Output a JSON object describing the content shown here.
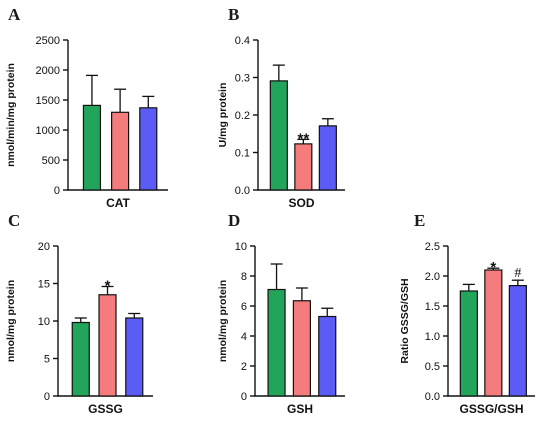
{
  "colors": {
    "group1": "#22a55a",
    "group2": "#f47c7c",
    "group3": "#5b5bf5"
  },
  "chart_data": [
    {
      "type": "bar",
      "panel": "A",
      "xlabel": "CAT",
      "ylabel": "nmol/min/mg protein",
      "ylim": [
        0,
        2500
      ],
      "yticks": [
        "0",
        "500",
        "1000",
        "1500",
        "2000",
        "2500"
      ],
      "values": [
        1410,
        1295,
        1370
      ],
      "errors": [
        500,
        385,
        190
      ],
      "annotations": [
        "",
        "",
        ""
      ]
    },
    {
      "type": "bar",
      "panel": "B",
      "xlabel": "SOD",
      "ylabel": "U/mg protein",
      "ylim": [
        0,
        0.4
      ],
      "yticks": [
        "0.0",
        "0.1",
        "0.2",
        "0.3",
        "0.4"
      ],
      "values": [
        0.291,
        0.123,
        0.171
      ],
      "errors": [
        0.042,
        0.012,
        0.019
      ],
      "annotations": [
        "",
        "**",
        ""
      ]
    },
    {
      "type": "bar",
      "panel": "C",
      "xlabel": "GSSG",
      "ylabel": "nmol/mg protein",
      "ylim": [
        0,
        20
      ],
      "yticks": [
        "0",
        "5",
        "10",
        "15",
        "20"
      ],
      "values": [
        9.8,
        13.5,
        10.4
      ],
      "errors": [
        0.6,
        1.1,
        0.6
      ],
      "annotations": [
        "",
        "*",
        ""
      ]
    },
    {
      "type": "bar",
      "panel": "D",
      "xlabel": "GSH",
      "ylabel": "nmol/mg protein",
      "ylim": [
        0,
        10
      ],
      "yticks": [
        "0",
        "2",
        "4",
        "6",
        "8",
        "10"
      ],
      "values": [
        7.1,
        6.35,
        5.3
      ],
      "errors": [
        1.7,
        0.85,
        0.55
      ],
      "annotations": [
        "",
        "",
        ""
      ]
    },
    {
      "type": "bar",
      "panel": "E",
      "xlabel": "GSSG/GSH",
      "ylabel": "Ratio GSSG/GSH",
      "ylim": [
        0,
        2.5
      ],
      "yticks": [
        "0.0",
        "0.5",
        "1.0",
        "1.5",
        "2.0",
        "2.5"
      ],
      "values": [
        1.75,
        2.1,
        1.84
      ],
      "errors": [
        0.11,
        0.03,
        0.09
      ],
      "annotations": [
        "",
        "*",
        "#"
      ]
    }
  ]
}
